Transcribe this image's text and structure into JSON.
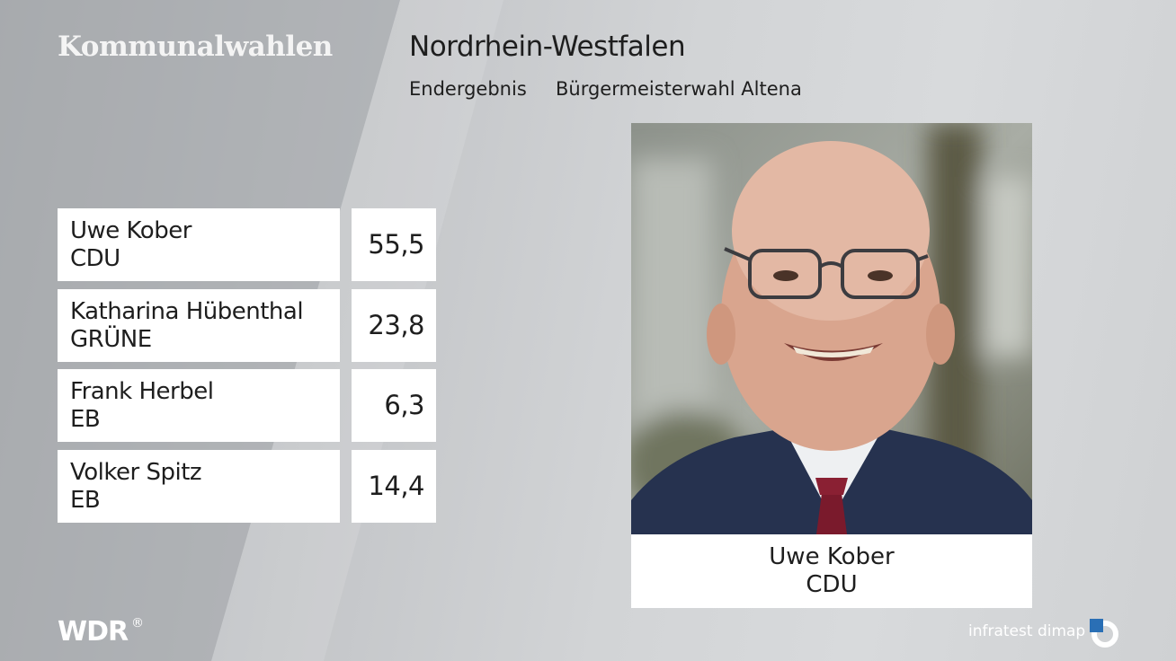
{
  "header": {
    "section": "Kommunalwahlen",
    "title": "Nordrhein-Westfalen",
    "subtitle": "Endergebnis",
    "election": "Bürgermeisterwahl Altena"
  },
  "results": [
    {
      "name": "Uwe Kober",
      "party": "CDU",
      "value": "55,5"
    },
    {
      "name": "Katharina Hübenthal",
      "party": "GRÜNE",
      "value": "23,8"
    },
    {
      "name": "Frank Herbel",
      "party": "EB",
      "value": "6,3"
    },
    {
      "name": "Volker Spitz",
      "party": "EB",
      "value": "14,4"
    }
  ],
  "portrait": {
    "name": "Uwe Kober",
    "party": "CDU"
  },
  "footer": {
    "broadcaster": "WDR",
    "registered": "®",
    "source": "infratest dimap"
  }
}
